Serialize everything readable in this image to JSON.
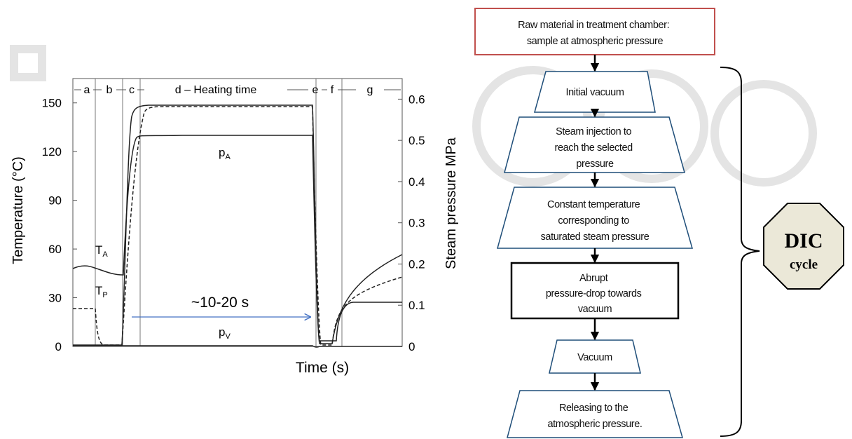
{
  "chart_data": {
    "type": "line",
    "title": "",
    "xlabel": "Time (s)",
    "ylabel_left": "Temperature (°C)",
    "ylabel_right": "Steam pressure MPa",
    "y_left": {
      "ticks": [
        "0",
        "30",
        "60",
        "90",
        "120",
        "150"
      ]
    },
    "y_right": {
      "ticks": [
        "0",
        "0.1",
        "0.2",
        "0.3",
        "0.4",
        "0.5",
        "0.6"
      ]
    },
    "phases": [
      "a",
      "b",
      "c",
      "d – Heating time",
      "e",
      "f",
      "g"
    ],
    "curve_labels": {
      "TA": {
        "main": "T",
        "sub": "A"
      },
      "TP": {
        "main": "T",
        "sub": "P"
      },
      "pA": {
        "main": "p",
        "sub": "A"
      },
      "pV": {
        "main": "p",
        "sub": "V"
      }
    },
    "duration_label": "~10-20 s",
    "grid": false
  },
  "flowchart": {
    "steps": [
      {
        "lines": [
          "Raw material in treatment chamber:",
          "sample at atmospheric pressure"
        ]
      },
      {
        "lines": [
          "Initial vacuum"
        ]
      },
      {
        "lines": [
          "Steam injection to",
          "reach the selected",
          "pressure"
        ]
      },
      {
        "lines": [
          "Constant temperature",
          "corresponding to",
          "saturated steam pressure"
        ]
      },
      {
        "lines": [
          "Abrupt",
          "pressure-drop towards",
          "vacuum"
        ]
      },
      {
        "lines": [
          "Vacuum"
        ]
      },
      {
        "lines": [
          "Releasing to the",
          "atmospheric pressure."
        ]
      }
    ],
    "cycle_badge": {
      "line1": "DIC",
      "line2": "cycle"
    },
    "colors": {
      "start_border": "#c0504d",
      "trapezoid_border": "#1f4e79",
      "arrow": "#000000",
      "badge_fill": "#ebe8d8"
    }
  }
}
